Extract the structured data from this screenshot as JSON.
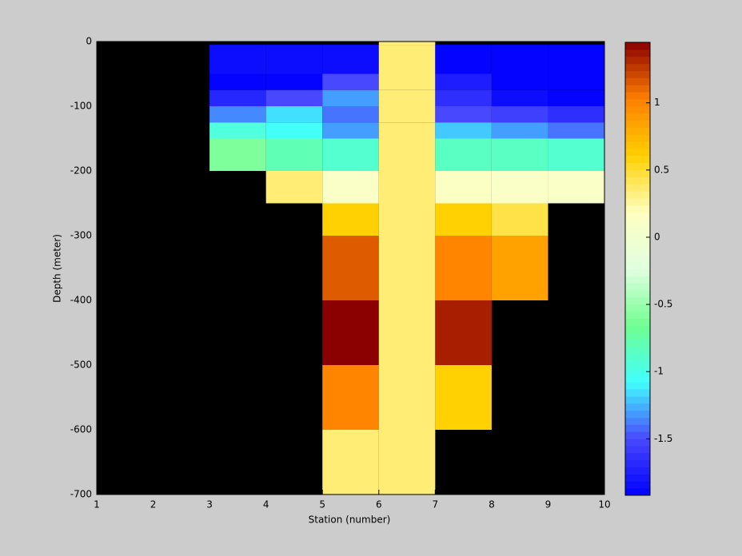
{
  "chart_data": {
    "type": "heatmap",
    "xlabel": "Station (number)",
    "ylabel": "Depth (meter)",
    "x": [
      1,
      2,
      3,
      4,
      5,
      6,
      7,
      8,
      9,
      10
    ],
    "y": [
      0,
      -5,
      -50,
      -75,
      -100,
      -125,
      -150,
      -200,
      -250,
      -300,
      -400,
      -500,
      -600,
      -700
    ],
    "z": [
      [
        null,
        null,
        null,
        null,
        null,
        0.35,
        null,
        null,
        null
      ],
      [
        null,
        null,
        -1.85,
        -1.85,
        -1.85,
        0.35,
        -1.9,
        -1.9,
        -1.9
      ],
      [
        null,
        null,
        -1.9,
        -1.9,
        -1.5,
        0.35,
        -1.75,
        -1.9,
        -1.9
      ],
      [
        null,
        null,
        -1.7,
        -1.5,
        -1.3,
        0.35,
        -1.65,
        -1.85,
        -1.9
      ],
      [
        null,
        null,
        -1.35,
        -1.15,
        -1.4,
        0.35,
        -1.5,
        -1.55,
        -1.65
      ],
      [
        null,
        null,
        -0.95,
        -1.05,
        -1.3,
        0.35,
        -1.2,
        -1.3,
        -1.4
      ],
      [
        null,
        null,
        -0.6,
        -0.8,
        -0.9,
        0.35,
        -0.85,
        -0.85,
        -0.9
      ],
      [
        null,
        null,
        null,
        0.35,
        0.1,
        0.35,
        0.15,
        0.1,
        0.1
      ],
      [
        null,
        null,
        null,
        null,
        0.6,
        0.35,
        0.6,
        0.45,
        null
      ],
      [
        null,
        null,
        null,
        null,
        1.15,
        0.35,
        1.0,
        0.85,
        null
      ],
      [
        null,
        null,
        null,
        null,
        1.45,
        0.35,
        1.35,
        null,
        null
      ],
      [
        null,
        null,
        null,
        null,
        1.0,
        0.35,
        0.6,
        null,
        null
      ],
      [
        null,
        null,
        null,
        null,
        0.35,
        0.35,
        null,
        null,
        null
      ]
    ],
    "xlim": [
      1,
      10
    ],
    "xticks": [
      1,
      2,
      3,
      4,
      5,
      6,
      7,
      8,
      9,
      10
    ],
    "ylim": [
      -700,
      0
    ],
    "yticks": [
      0,
      -100,
      -200,
      -300,
      -400,
      -500,
      -600,
      -700
    ],
    "clim": [
      -1.92,
      1.45
    ],
    "cticks": [
      1,
      0.5,
      0,
      -0.5,
      -1,
      -1.5
    ],
    "background": "#000000",
    "colormap": [
      "#0000ff",
      "#4848ff",
      "#40ffff",
      "#70ff90",
      "#e0ffe0",
      "#ffffc0",
      "#ffd000",
      "#ff8000",
      "#8b0000"
    ]
  }
}
